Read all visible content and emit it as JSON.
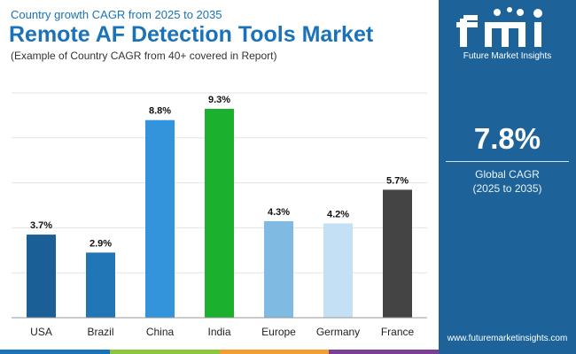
{
  "header": {
    "subtitle": "Country growth CAGR from 2025 to 2035",
    "title": "Remote AF Detection Tools Market",
    "note": "(Example of Country CAGR from 40+ covered in Report)"
  },
  "chart_data": {
    "type": "bar",
    "categories": [
      "USA",
      "Brazil",
      "China",
      "India",
      "Europe",
      "Germany",
      "France"
    ],
    "values": [
      3.7,
      2.9,
      8.8,
      9.3,
      4.3,
      4.2,
      5.7
    ],
    "value_labels": [
      "3.7%",
      "2.9%",
      "8.8%",
      "9.3%",
      "4.3%",
      "4.2%",
      "5.7%"
    ],
    "colors": [
      "#1a5f96",
      "#2176b5",
      "#3393db",
      "#1cb02f",
      "#7fbae3",
      "#c3e0f4",
      "#444444"
    ],
    "title": "",
    "xlabel": "",
    "ylabel": "",
    "ylim": [
      0,
      9.3
    ],
    "grid": true
  },
  "panel": {
    "brand": "Future Market Insights",
    "value": "7.8%",
    "label": "Global CAGR",
    "range": "(2025 to 2035)",
    "url": "www.futuremarketinsights.com",
    "background": "#1d6399"
  },
  "bottom_bar_colors": [
    "#1a73b8",
    "#8cc63f",
    "#f39c32",
    "#7b3f98"
  ]
}
